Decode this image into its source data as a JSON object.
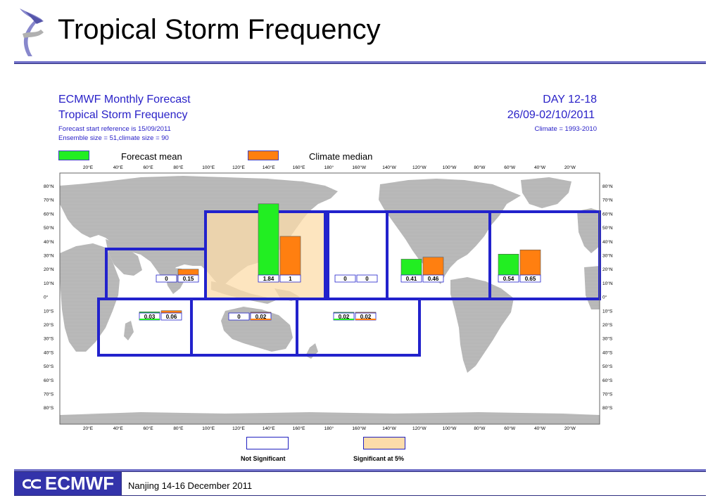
{
  "slide": {
    "title": "Tropical Storm Frequency",
    "footer_text": "Nanjing 14-16  December 2011",
    "footer_logo_text": "ECMWF"
  },
  "map_header": {
    "left_line1": "ECMWF Monthly Forecast",
    "left_line2": "Tropical Storm Frequency",
    "left_line3": "Forecast start reference is 15/09/2011",
    "left_line4": "Ensemble size = 51,climate size = 90",
    "right_line1": "DAY 12-18",
    "right_line2": "26/09-02/10/2011",
    "right_line3": "Climate = 1993-2010"
  },
  "legend": {
    "forecast_label": "Forecast mean",
    "climate_label": "Climate median",
    "not_significant_label": "Not Significant",
    "significant_label": "Significant at 5%"
  },
  "colors": {
    "forecast": "#22ee22",
    "climate": "#ff7f10",
    "significant": "#fcdcaa",
    "box": "#2222cc",
    "land": "#bdbdbd",
    "title_blue": "#2a22c8"
  },
  "axes": {
    "lon_labels": [
      "20°E",
      "40°E",
      "60°E",
      "80°E",
      "100°E",
      "120°E",
      "140°E",
      "160°E",
      "180°",
      "160°W",
      "140°W",
      "120°W",
      "100°W",
      "80°W",
      "60°W",
      "40°W",
      "20°W"
    ],
    "lat_labels": [
      "80°N",
      "70°N",
      "60°N",
      "50°N",
      "40°N",
      "30°N",
      "20°N",
      "10°N",
      "0°",
      "10°S",
      "20°S",
      "30°S",
      "40°S",
      "50°S",
      "60°S",
      "70°S",
      "80°S"
    ]
  },
  "chart_data": {
    "type": "bar",
    "title": "Tropical Storm Frequency",
    "series_names": [
      "Forecast mean",
      "Climate median"
    ],
    "regions": [
      {
        "forecast": 0,
        "climate": 0.15,
        "forecast_label": "0",
        "climate_label": "0.15",
        "significant": false
      },
      {
        "forecast": 1.84,
        "climate": 1,
        "forecast_label": "1.84",
        "climate_label": "1",
        "significant": true
      },
      {
        "forecast": 0,
        "climate": 0,
        "forecast_label": "0",
        "climate_label": "0",
        "significant": false
      },
      {
        "forecast": 0.41,
        "climate": 0.46,
        "forecast_label": "0.41",
        "climate_label": "0.46",
        "significant": false
      },
      {
        "forecast": 0.54,
        "climate": 0.65,
        "forecast_label": "0.54",
        "climate_label": "0.65",
        "significant": false
      },
      {
        "forecast": 0.03,
        "climate": 0.06,
        "forecast_label": "0.03",
        "climate_label": "0.06",
        "significant": false
      },
      {
        "forecast": 0,
        "climate": 0.02,
        "forecast_label": "0",
        "climate_label": "0.02",
        "significant": false
      },
      {
        "forecast": 0.02,
        "climate": 0.02,
        "forecast_label": "0.02",
        "climate_label": "0.02",
        "significant": false
      }
    ]
  }
}
